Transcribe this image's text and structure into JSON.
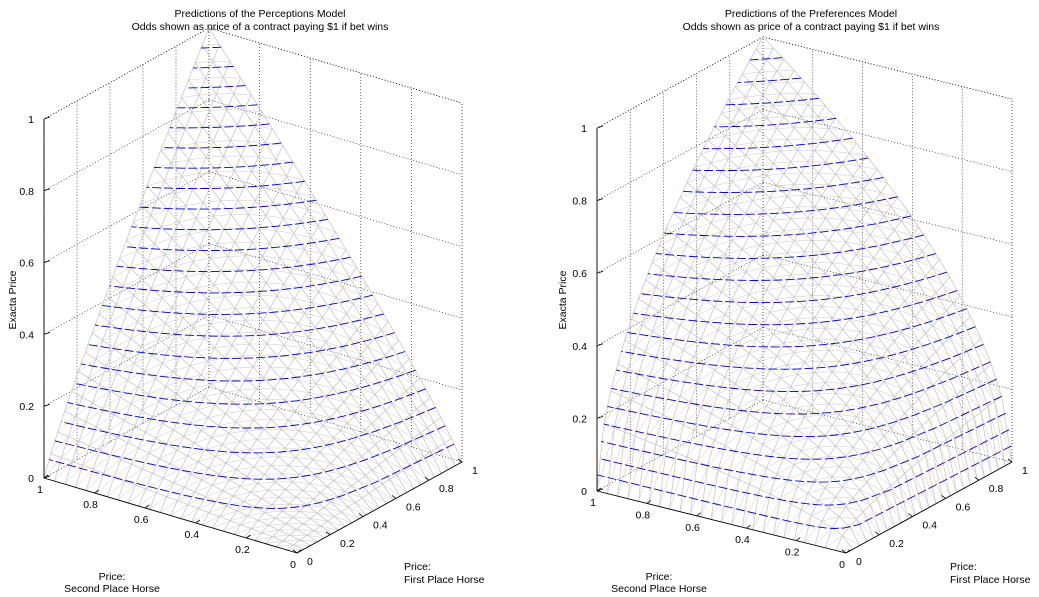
{
  "chart_data": [
    {
      "type": "surface",
      "title": "Predictions of the Perceptions Model",
      "subtitle": "Odds shown as price of a contract paying $1 if bet wins",
      "zlabel": "Exacta Price",
      "xlabel": [
        "Price:",
        "Second Place Horse"
      ],
      "ylabel": [
        "Price:",
        "First Place Horse"
      ],
      "z_ticks": [
        "0",
        "0.2",
        "0.4",
        "0.6",
        "0.8",
        "1"
      ],
      "x_ticks": [
        "1",
        "0.8",
        "0.6",
        "0.4",
        "0.2",
        "0"
      ],
      "y_ticks": [
        "0",
        "0.2",
        "0.4",
        "0.6",
        "0.8",
        "1"
      ],
      "xlim": [
        0,
        1
      ],
      "ylim": [
        0,
        1
      ],
      "zlim": [
        0,
        1
      ],
      "mesh_color": "#c8c8c8",
      "contour_color": "#0000cc",
      "surface_exponent": 0.9
    },
    {
      "type": "surface",
      "title": "Predictions of the Preferences Model",
      "subtitle": "Odds shown as price of a contract paying $1 if bet wins",
      "zlabel": "Exacta Price",
      "xlabel": [
        "Price:",
        "Second Place Horse"
      ],
      "ylabel": [
        "Price:",
        "First Place Horse"
      ],
      "z_ticks": [
        "0",
        "0.2",
        "0.4",
        "0.6",
        "0.8",
        "1"
      ],
      "x_ticks": [
        "1",
        "0.8",
        "0.6",
        "0.4",
        "0.2",
        "0"
      ],
      "y_ticks": [
        "0",
        "0.2",
        "0.4",
        "0.6",
        "0.8",
        "1"
      ],
      "xlim": [
        0,
        1
      ],
      "ylim": [
        0,
        1
      ],
      "zlim": [
        0,
        1
      ],
      "mesh_color": "#c8c8c8",
      "contour_color": "#0000cc",
      "surface_exponent": 0.55
    }
  ]
}
